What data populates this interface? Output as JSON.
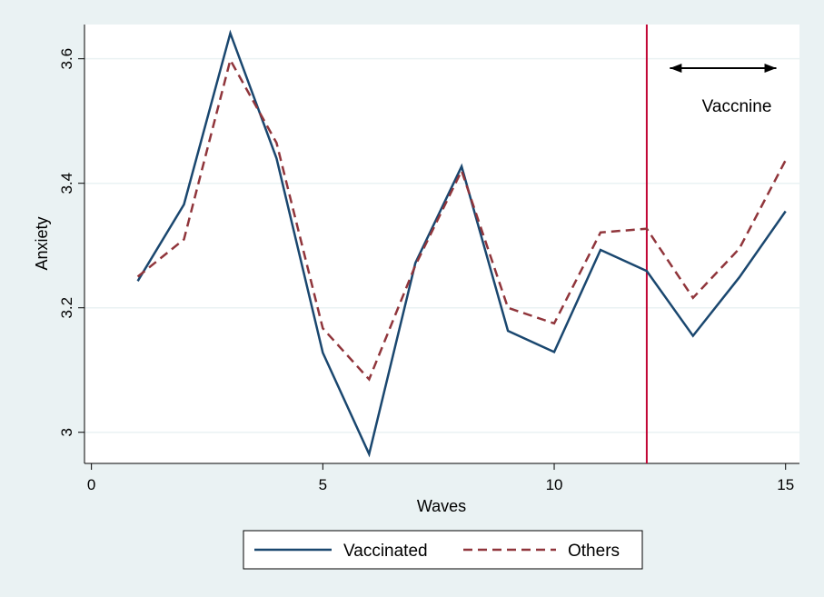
{
  "chart_data": {
    "type": "line",
    "xlabel": "Waves",
    "ylabel": "Anxiety",
    "xlim": [
      -0.15,
      15.3
    ],
    "ylim": [
      2.95,
      3.655
    ],
    "xticks": [
      0,
      5,
      10,
      15
    ],
    "xtick_labels": [
      "0",
      "5",
      "10",
      "15"
    ],
    "yticks": [
      3.0,
      3.2,
      3.4,
      3.6
    ],
    "ytick_labels": [
      "3",
      "3.2",
      "3.4",
      "3.6"
    ],
    "grid": true,
    "legend": "bottom",
    "series": [
      {
        "name": "Vaccinated",
        "color": "#1a476f",
        "style": "solid",
        "x": [
          1,
          2,
          3,
          4,
          5,
          6,
          7,
          8,
          9,
          10,
          11,
          12,
          13,
          14,
          15
        ],
        "y": [
          3.243,
          3.366,
          3.641,
          3.44,
          3.128,
          2.965,
          3.272,
          3.427,
          3.163,
          3.129,
          3.293,
          3.259,
          3.155,
          3.249,
          3.355
        ]
      },
      {
        "name": "Others",
        "color": "#90353b",
        "style": "dashed",
        "x": [
          1,
          2,
          3,
          4,
          5,
          6,
          7,
          8,
          9,
          10,
          11,
          12,
          13,
          14,
          15
        ],
        "y": [
          3.25,
          3.31,
          3.598,
          3.465,
          3.167,
          3.085,
          3.268,
          3.42,
          3.2,
          3.175,
          3.321,
          3.327,
          3.216,
          3.295,
          3.437
        ]
      }
    ],
    "vline": {
      "x": 12,
      "color": "#c10534"
    },
    "annotation": {
      "text": "Vaccnine",
      "arrow_x": [
        12.5,
        14.8
      ],
      "arrow_y": 3.585,
      "text_x": 14.7,
      "text_y": 3.525
    }
  }
}
